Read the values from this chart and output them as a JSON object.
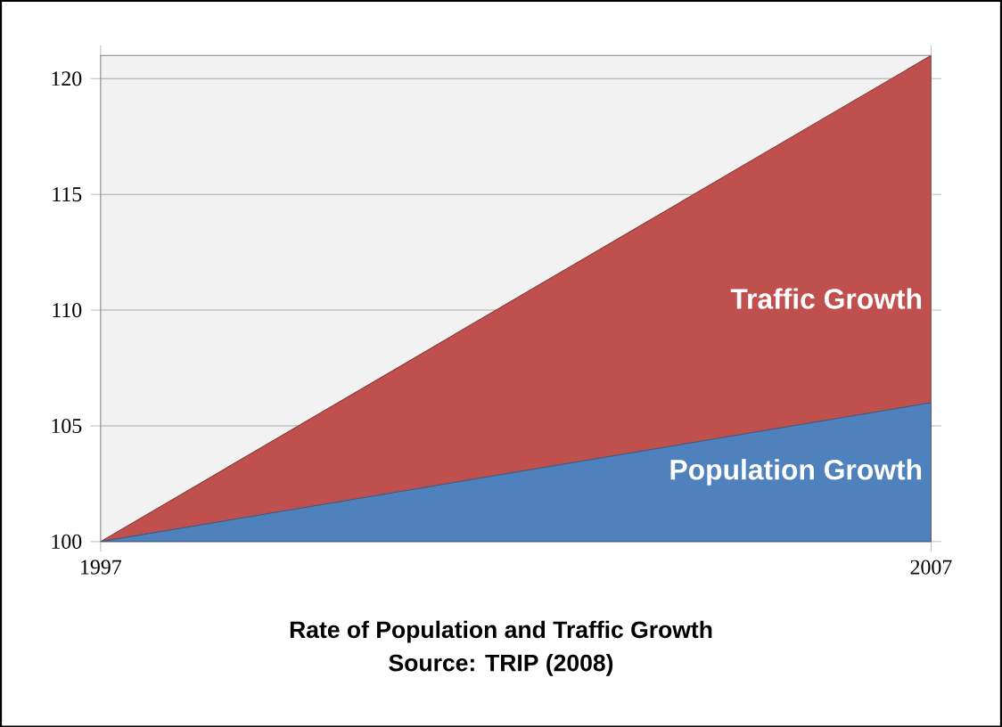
{
  "chart_data": {
    "type": "area",
    "title": "Rate of Population and Traffic Growth",
    "annotations": [
      "Source: TRIP (2008)"
    ],
    "x": [
      1997,
      2007
    ],
    "xlim": [
      1997,
      2007
    ],
    "xticks": [
      1997,
      2007
    ],
    "ylim": [
      100,
      121
    ],
    "yticks": [
      100,
      105,
      110,
      115,
      120
    ],
    "grid": "y",
    "series": [
      {
        "name": "Traffic Growth",
        "color": "#c0504d",
        "values": [
          100,
          121
        ]
      },
      {
        "name": "Population Growth",
        "color": "#4f81bd",
        "values": [
          100,
          106
        ]
      }
    ]
  }
}
